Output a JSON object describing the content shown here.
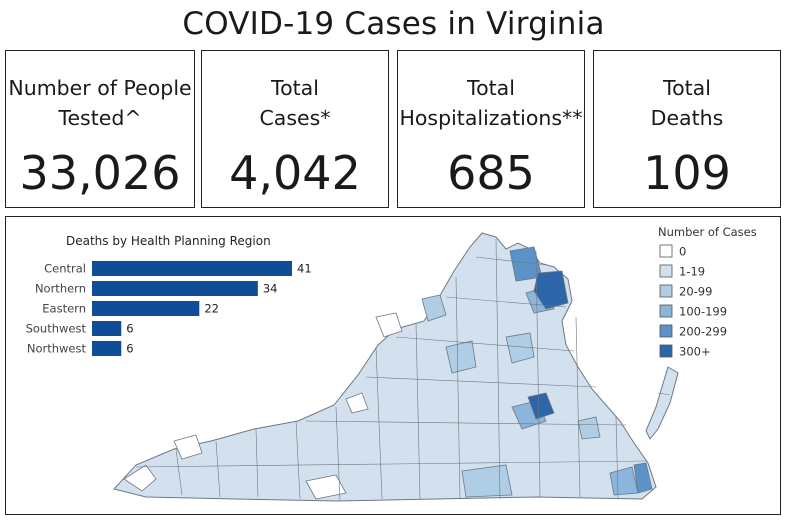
{
  "title": "COVID-19 Cases in Virginia",
  "cards": [
    {
      "label": "Number of People\nTested^",
      "value": "33,026"
    },
    {
      "label": "Total\nCases*",
      "value": "4,042"
    },
    {
      "label": "Total\nHospitalizations**",
      "value": "685"
    },
    {
      "label": "Total\nDeaths",
      "value": "109"
    }
  ],
  "chart_data": {
    "type": "bar",
    "orientation": "horizontal",
    "title": "Deaths by Health Planning Region",
    "categories": [
      "Central",
      "Northern",
      "Eastern",
      "Southwest",
      "Northwest"
    ],
    "values": [
      41,
      34,
      22,
      6,
      6
    ],
    "bar_color": "#0f4d97"
  },
  "legend": {
    "title": "Number of Cases",
    "items": [
      {
        "label": "0",
        "color": "#ffffff"
      },
      {
        "label": "1-19",
        "color": "#d3e1ef"
      },
      {
        "label": "20-99",
        "color": "#b0cde6"
      },
      {
        "label": "100-199",
        "color": "#8bb5da"
      },
      {
        "label": "200-299",
        "color": "#5b93c9"
      },
      {
        "label": "300+",
        "color": "#2c65a8"
      }
    ]
  }
}
